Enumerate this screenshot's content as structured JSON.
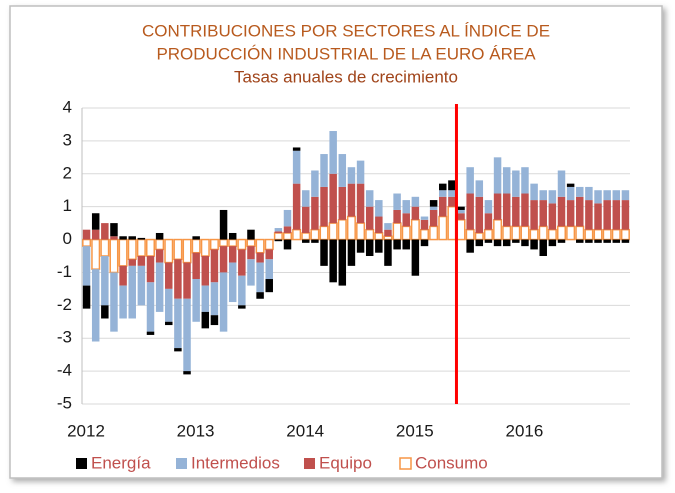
{
  "chart_data": {
    "type": "stacked-bar",
    "title": [
      "CONTRIBUCIONES POR SECTORES AL ÍNDICE DE",
      "PRODUCCIÓN INDUSTRIAL DE LA EURO ÁREA"
    ],
    "subtitle": "Tasas anuales de crecimiento",
    "categories": [
      "2012",
      null,
      null,
      null,
      null,
      null,
      null,
      null,
      null,
      null,
      null,
      null,
      "2013",
      null,
      null,
      null,
      null,
      null,
      null,
      null,
      null,
      null,
      null,
      null,
      "2014",
      null,
      null,
      null,
      null,
      null,
      null,
      null,
      null,
      null,
      null,
      null,
      "2015",
      null,
      null,
      null,
      null,
      null,
      null,
      null,
      null,
      null,
      null,
      null,
      "2016",
      null,
      null,
      null,
      null,
      null,
      null,
      null,
      null,
      null,
      null,
      null
    ],
    "series": [
      {
        "name": "Energía",
        "color": "#000000",
        "values": [
          -0.7,
          0.5,
          -0.4,
          0.4,
          0.1,
          0.1,
          0.05,
          -0.1,
          0.2,
          -0.1,
          -0.1,
          -0.1,
          0.1,
          -0.5,
          -0.3,
          0.9,
          0.2,
          -0.1,
          0.3,
          -0.2,
          -0.4,
          -0.05,
          -0.3,
          0.1,
          -0.1,
          -0.1,
          -0.8,
          -1.3,
          -1.4,
          -0.8,
          -0.4,
          -0.5,
          -0.4,
          -0.8,
          -0.3,
          -0.3,
          -1.1,
          -0.2,
          0.2,
          0.2,
          0.3,
          0.1,
          -0.4,
          -0.2,
          -0.1,
          -0.2,
          -0.2,
          -0.1,
          -0.2,
          -0.3,
          -0.5,
          -0.2,
          -0.1,
          0.1,
          -0.1,
          -0.1,
          -0.1,
          -0.1,
          -0.1,
          -0.1
        ]
      },
      {
        "name": "Intermedios",
        "color": "#95b3d7",
        "values": [
          -1.2,
          -2.2,
          -1.5,
          -1.8,
          -1.0,
          -1.6,
          -1.2,
          -1.5,
          -1.5,
          -1.0,
          -1.5,
          -2.2,
          -1.3,
          -0.8,
          -1.0,
          -1.8,
          -1.2,
          -0.9,
          -0.8,
          -0.9,
          -0.6,
          0.1,
          0.5,
          1.0,
          0.5,
          0.8,
          1.0,
          1.3,
          1.0,
          0.5,
          0.7,
          0.5,
          0.5,
          0.2,
          0.5,
          0.4,
          0.3,
          0.1,
          0.1,
          0.2,
          0.2,
          0.1,
          0.8,
          0.5,
          0.4,
          1.1,
          0.8,
          0.8,
          0.8,
          0.5,
          0.3,
          0.4,
          0.8,
          0.4,
          0.3,
          0.4,
          0.4,
          0.3,
          0.3,
          0.3
        ]
      },
      {
        "name": "Equipo",
        "color": "#c0504d",
        "values": [
          0.3,
          0.3,
          0.5,
          0.1,
          -0.6,
          -0.2,
          -0.3,
          -0.8,
          -0.4,
          -0.8,
          -1.2,
          -1.1,
          -0.8,
          -0.9,
          -1.0,
          -0.8,
          -0.5,
          -0.8,
          -0.4,
          -0.3,
          -0.3,
          0.05,
          0.2,
          1.4,
          0.8,
          1.0,
          1.2,
          1.5,
          1.0,
          1.0,
          1.2,
          0.7,
          0.5,
          0.2,
          0.4,
          0.4,
          0.4,
          0.3,
          0.5,
          0.6,
          0.3,
          0.2,
          1.1,
          1.1,
          0.5,
          0.8,
          1.0,
          0.9,
          1.0,
          0.9,
          0.8,
          0.8,
          0.9,
          0.8,
          0.9,
          0.9,
          0.8,
          0.9,
          0.9,
          0.9
        ]
      },
      {
        "name": "Consumo",
        "color": "#f79646",
        "hollow": true,
        "values": [
          -0.2,
          -0.9,
          -0.5,
          -1.0,
          -0.8,
          -0.6,
          -0.5,
          -0.5,
          -0.3,
          -0.7,
          -0.6,
          -0.7,
          -0.4,
          -0.5,
          -0.3,
          -0.2,
          -0.2,
          -0.3,
          -0.2,
          -0.4,
          -0.3,
          0.2,
          0.2,
          0.3,
          0.2,
          0.3,
          0.4,
          0.5,
          0.6,
          0.7,
          0.5,
          0.3,
          0.2,
          0.1,
          0.5,
          0.4,
          0.6,
          0.3,
          0.4,
          0.7,
          1.0,
          0.6,
          0.3,
          0.2,
          0.3,
          0.6,
          0.4,
          0.4,
          0.4,
          0.3,
          0.4,
          0.3,
          0.4,
          0.4,
          0.4,
          0.3,
          0.3,
          0.3,
          0.3,
          0.3
        ]
      }
    ],
    "ylim": [
      -5,
      4
    ],
    "yticks": [
      -5,
      -4,
      -3,
      -2,
      -1,
      0,
      1,
      2,
      3,
      4
    ],
    "grid": true,
    "reference_line": {
      "index": 41,
      "color": "#ff0000"
    },
    "legend": "bottom"
  }
}
